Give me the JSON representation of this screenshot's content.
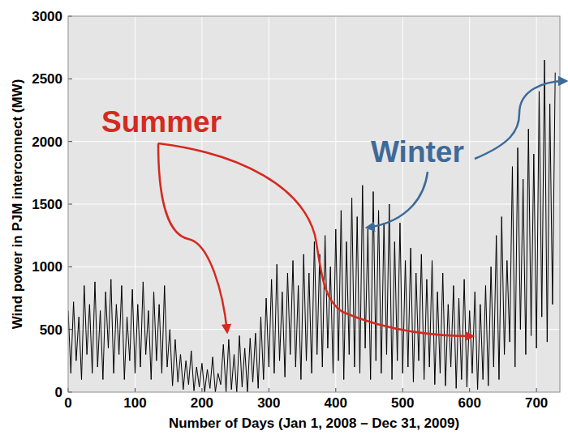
{
  "chart_data": {
    "type": "line",
    "x_label": "Number of Days (Jan 1, 2008 – Dec 31, 2009)",
    "y_label": "Wind power in PJM interconnect (MW)",
    "color": "#000000",
    "grid": true,
    "xlim": [
      0,
      735
    ],
    "ylim": [
      0,
      3000
    ],
    "xticks": [
      0,
      100,
      200,
      300,
      400,
      500,
      600,
      700
    ],
    "yticks": [
      0,
      500,
      1000,
      1500,
      2000,
      2500,
      3000
    ],
    "annotations": [
      {
        "text": "Summer",
        "color": "#d42a20"
      },
      {
        "text": "Winter",
        "color": "#3d6a98"
      }
    ],
    "x": [
      0,
      4,
      8,
      12,
      16,
      20,
      24,
      28,
      32,
      36,
      40,
      44,
      48,
      52,
      56,
      60,
      64,
      68,
      72,
      76,
      80,
      84,
      88,
      92,
      96,
      100,
      104,
      108,
      112,
      116,
      120,
      124,
      128,
      132,
      136,
      140,
      144,
      148,
      152,
      156,
      160,
      164,
      168,
      172,
      176,
      180,
      184,
      188,
      192,
      196,
      200,
      204,
      208,
      212,
      216,
      220,
      224,
      228,
      232,
      236,
      240,
      244,
      248,
      252,
      256,
      260,
      264,
      268,
      272,
      276,
      280,
      284,
      288,
      292,
      296,
      300,
      304,
      308,
      312,
      316,
      320,
      324,
      328,
      332,
      336,
      340,
      344,
      348,
      352,
      356,
      360,
      364,
      368,
      372,
      376,
      380,
      384,
      388,
      392,
      396,
      400,
      404,
      408,
      412,
      416,
      420,
      424,
      428,
      432,
      436,
      440,
      444,
      448,
      452,
      456,
      460,
      464,
      468,
      472,
      476,
      480,
      484,
      488,
      492,
      496,
      500,
      504,
      508,
      512,
      516,
      520,
      524,
      528,
      532,
      536,
      540,
      544,
      548,
      552,
      556,
      560,
      564,
      568,
      572,
      576,
      580,
      584,
      588,
      592,
      596,
      600,
      604,
      608,
      612,
      616,
      620,
      624,
      628,
      632,
      636,
      640,
      644,
      648,
      652,
      656,
      660,
      664,
      668,
      672,
      676,
      680,
      684,
      688,
      692,
      696,
      700,
      704,
      708,
      712,
      716,
      720,
      724,
      728
    ],
    "values": [
      650,
      150,
      720,
      250,
      600,
      100,
      850,
      300,
      700,
      150,
      880,
      200,
      650,
      100,
      800,
      350,
      900,
      150,
      700,
      300,
      850,
      100,
      600,
      250,
      820,
      150,
      700,
      200,
      880,
      300,
      650,
      100,
      800,
      250,
      700,
      150,
      850,
      200,
      500,
      50,
      420,
      80,
      300,
      20,
      250,
      60,
      330,
      10,
      200,
      40,
      230,
      0,
      180,
      30,
      280,
      0,
      150,
      60,
      380,
      0,
      420,
      20,
      300,
      0,
      450,
      40,
      350,
      0,
      430,
      80,
      470,
      30,
      600,
      100,
      750,
      200,
      900,
      150,
      1020,
      250,
      800,
      120,
      950,
      300,
      1050,
      200,
      850,
      100,
      1100,
      250,
      950,
      150,
      1200,
      300,
      1100,
      200,
      1250,
      350,
      1000,
      150,
      1300,
      250,
      1450,
      100,
      1200,
      300,
      1550,
      200,
      1400,
      150,
      1650,
      350,
      1300,
      100,
      1600,
      250,
      1450,
      150,
      1350,
      300,
      1500,
      100,
      1200,
      250,
      1350,
      150,
      1050,
      200,
      1150,
      80,
      950,
      250,
      1100,
      100,
      900,
      200,
      1050,
      60,
      800,
      150,
      950,
      50,
      700,
      200,
      850,
      30,
      750,
      100,
      900,
      40,
      650,
      150,
      800,
      20,
      700,
      100,
      850,
      50,
      1000,
      200,
      1250,
      100,
      1400,
      300,
      1050,
      400,
      1800,
      200,
      1950,
      500,
      1700,
      300,
      2100,
      450,
      1900,
      350,
      2400,
      600,
      2650,
      400,
      2300,
      700,
      2550
    ]
  }
}
